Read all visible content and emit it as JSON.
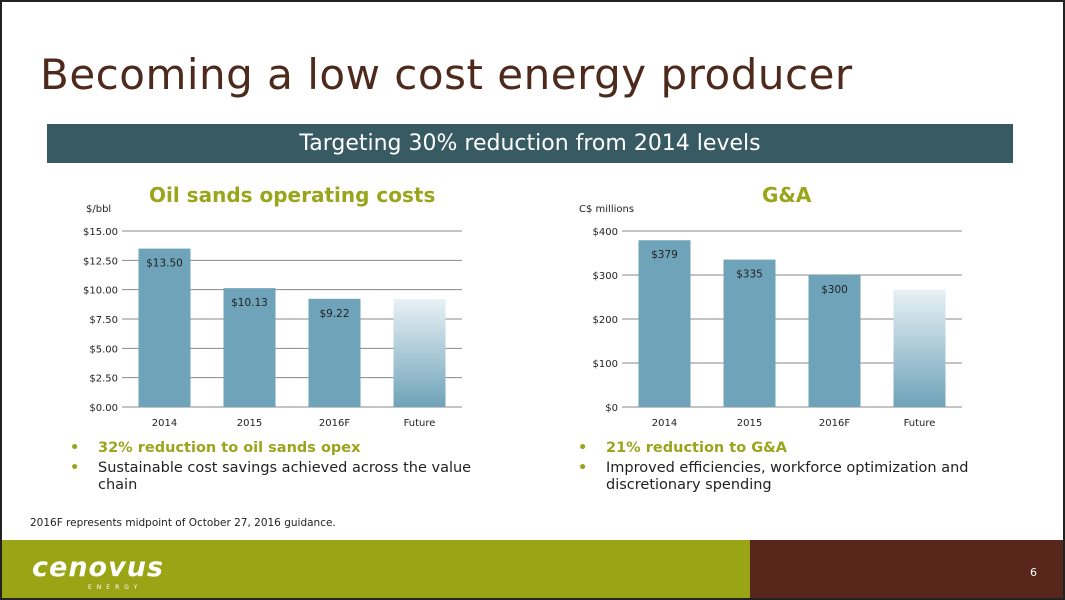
{
  "slide": {
    "title": "Becoming a low cost energy producer",
    "banner": "Targeting 30% reduction from 2014 levels",
    "footnote": "2016F represents midpoint of October 27, 2016 guidance.",
    "page_number": "6",
    "logo": {
      "text": "cenovus",
      "subtext": "ENERGY"
    }
  },
  "colors": {
    "title": "#4e2a1c",
    "banner_bg": "#385a63",
    "accent_green": "#9aa51c",
    "bar": "#6fa3b9",
    "footer_brown": "#58261a",
    "footer_green": "#9aa516"
  },
  "left": {
    "bullets": [
      {
        "text": "32% reduction to oil sands opex",
        "highlight": true
      },
      {
        "text": "Sustainable cost savings achieved across the value chain",
        "highlight": false
      }
    ]
  },
  "right": {
    "bullets": [
      {
        "text": "21% reduction to G&A",
        "highlight": true
      },
      {
        "text": "Improved efficiencies, workforce optimization and discretionary spending",
        "highlight": false
      }
    ]
  },
  "chart_data": [
    {
      "type": "bar",
      "title": "Oil sands operating costs",
      "unit_label": "$/bbl",
      "categories": [
        "2014",
        "2015",
        "2016F",
        "Future"
      ],
      "values": [
        13.5,
        10.13,
        9.22,
        9.2
      ],
      "data_labels": [
        "$13.50",
        "$10.13",
        "$9.22",
        ""
      ],
      "future_bar_gradient": true,
      "ylim": [
        0,
        15
      ],
      "yticks": [
        0,
        2.5,
        5,
        7.5,
        10,
        12.5,
        15
      ],
      "ytick_labels": [
        "$0.00",
        "$2.50",
        "$5.00",
        "$7.50",
        "$10.00",
        "$12.50",
        "$15.00"
      ],
      "grid": true
    },
    {
      "type": "bar",
      "title": "G&A",
      "unit_label": "C$ millions",
      "categories": [
        "2014",
        "2015",
        "2016F",
        "Future"
      ],
      "values": [
        379,
        335,
        300,
        267
      ],
      "data_labels": [
        "$379",
        "$335",
        "$300",
        ""
      ],
      "future_bar_gradient": true,
      "ylim": [
        0,
        400
      ],
      "yticks": [
        0,
        100,
        200,
        300,
        400
      ],
      "ytick_labels": [
        "$0",
        "$100",
        "$200",
        "$300",
        "$400"
      ],
      "grid": true
    }
  ]
}
